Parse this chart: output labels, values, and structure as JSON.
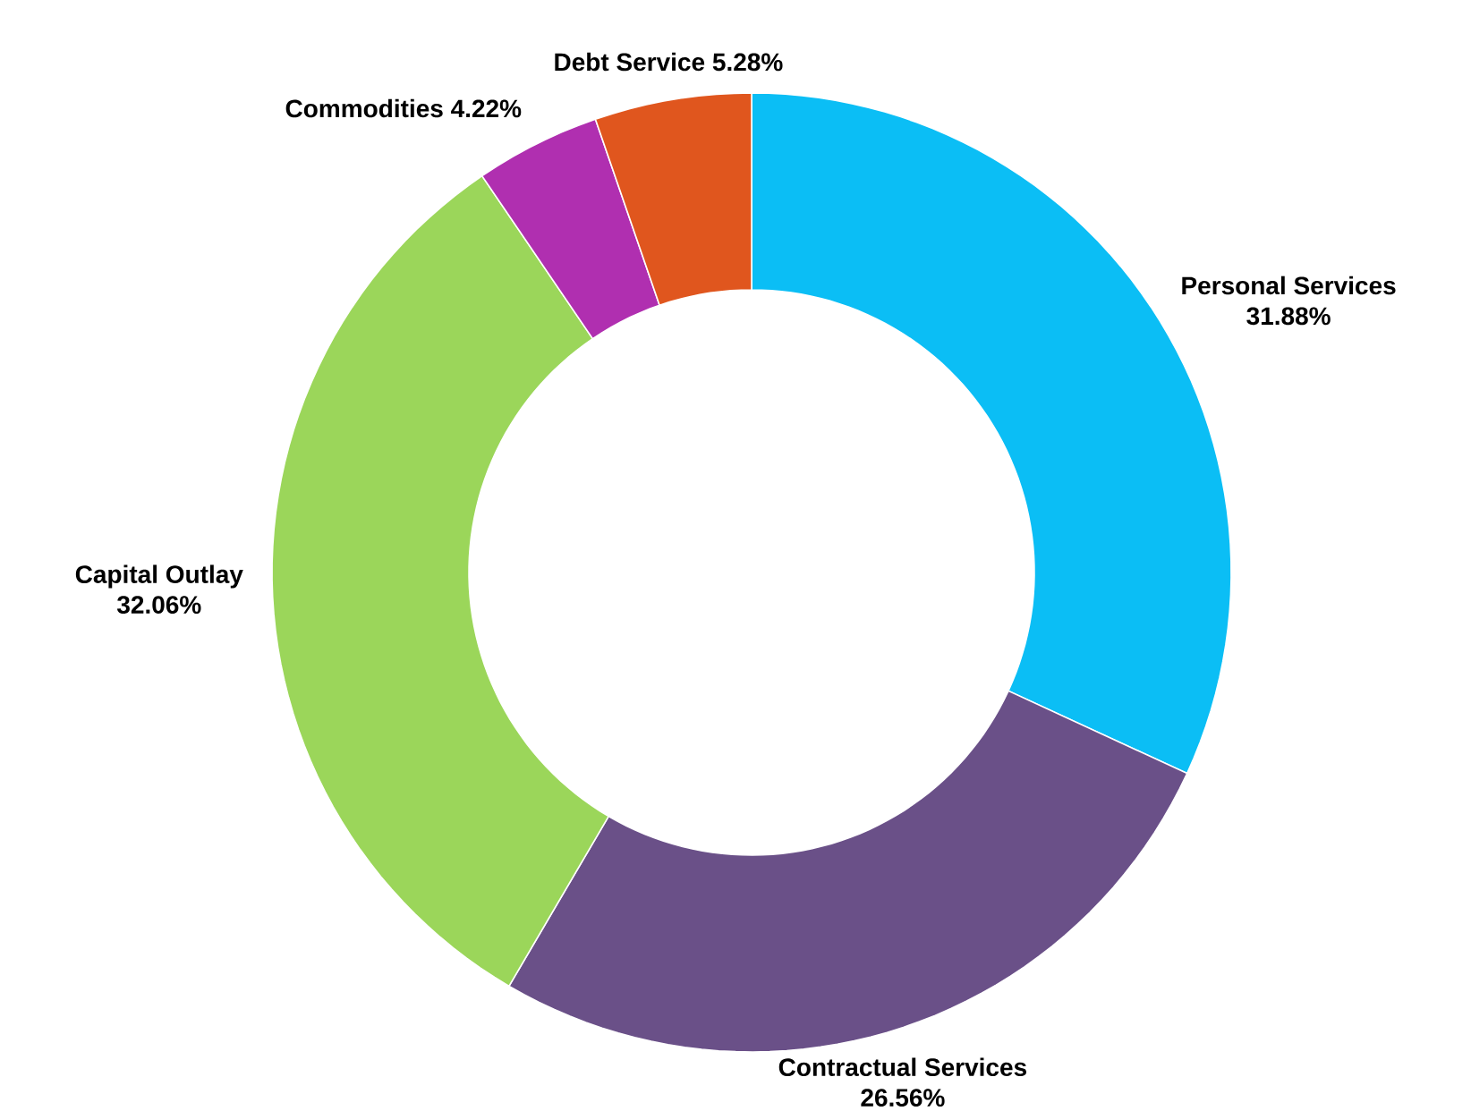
{
  "chart_data": {
    "type": "donut",
    "categories": [
      "Personal Services",
      "Contractual Services",
      "Capital Outlay",
      "Commodities",
      "Debt Service"
    ],
    "values": [
      31.88,
      26.56,
      32.06,
      4.22,
      5.28
    ],
    "colors": [
      "#0bbef5",
      "#6a5088",
      "#9bd65a",
      "#b02fb0",
      "#e0561e"
    ],
    "value_labels": [
      "31.88%",
      "26.56%",
      "32.06%",
      "4.22%",
      "5.28%"
    ]
  }
}
